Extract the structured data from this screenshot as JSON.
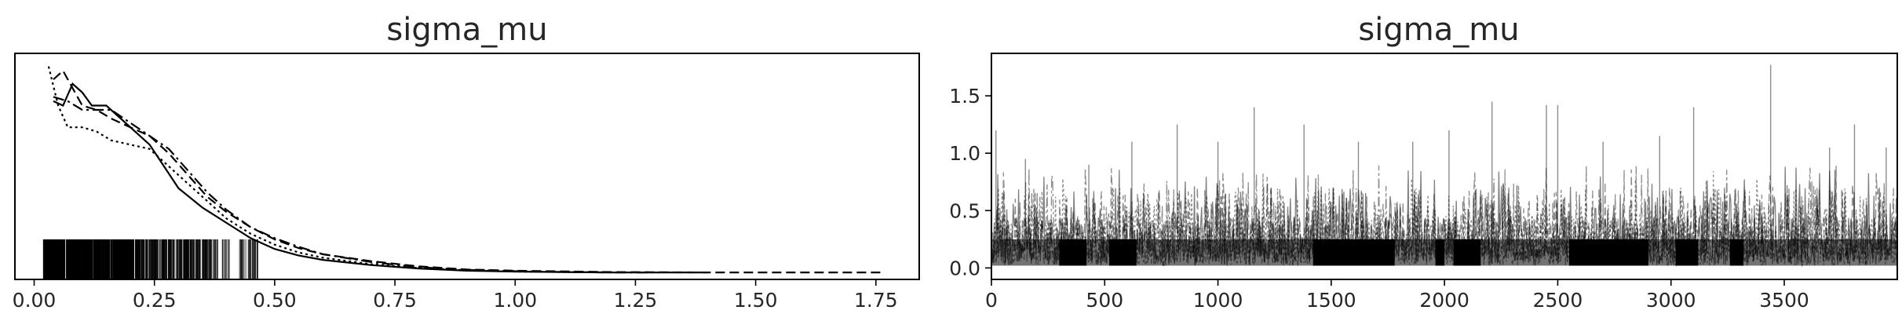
{
  "chart_data": [
    {
      "type": "line",
      "subtype": "density",
      "title": "sigma_mu",
      "xlabel": "",
      "ylabel": "",
      "xlim": [
        -0.04,
        1.84
      ],
      "ylim": [
        0,
        5.2
      ],
      "xticks": [
        "0.00",
        "0.25",
        "0.50",
        "0.75",
        "1.00",
        "1.25",
        "1.50",
        "1.75"
      ],
      "yticks": [],
      "grid": false,
      "legend": "none",
      "rug": true,
      "series": [
        {
          "linestyle": "solid",
          "color": "#000000",
          "x": [
            0.04,
            0.06,
            0.08,
            0.1,
            0.12,
            0.15,
            0.18,
            0.21,
            0.24,
            0.27,
            0.3,
            0.35,
            0.4,
            0.45,
            0.5,
            0.55,
            0.6,
            0.7,
            0.8,
            0.9,
            1.0,
            1.1,
            1.2,
            1.3,
            1.4
          ],
          "y": [
            4.1,
            4.0,
            4.5,
            4.3,
            4.0,
            4.0,
            3.7,
            3.4,
            3.1,
            2.6,
            2.1,
            1.65,
            1.3,
            0.95,
            0.7,
            0.55,
            0.45,
            0.33,
            0.25,
            0.2,
            0.18,
            0.17,
            0.16,
            0.16,
            0.16
          ]
        },
        {
          "linestyle": "dashed",
          "color": "#000000",
          "x": [
            0.04,
            0.06,
            0.08,
            0.1,
            0.13,
            0.16,
            0.2,
            0.24,
            0.28,
            0.32,
            0.36,
            0.4,
            0.45,
            0.5,
            0.55,
            0.6,
            0.7,
            0.8,
            0.9,
            1.0,
            1.2,
            1.4,
            1.6,
            1.76
          ],
          "y": [
            4.6,
            4.8,
            4.4,
            4.0,
            3.9,
            3.7,
            3.5,
            3.3,
            2.9,
            2.4,
            1.9,
            1.55,
            1.2,
            0.92,
            0.72,
            0.58,
            0.42,
            0.3,
            0.23,
            0.2,
            0.17,
            0.16,
            0.16,
            0.16
          ]
        },
        {
          "linestyle": "dashdot",
          "color": "#000000",
          "x": [
            0.04,
            0.07,
            0.1,
            0.13,
            0.16,
            0.2,
            0.24,
            0.28,
            0.32,
            0.36,
            0.4,
            0.45,
            0.5,
            0.55,
            0.6,
            0.7,
            0.8,
            0.9,
            1.0,
            1.1,
            1.2,
            1.3
          ],
          "y": [
            4.2,
            4.1,
            3.9,
            3.9,
            3.9,
            3.6,
            3.3,
            3.0,
            2.5,
            2.0,
            1.6,
            1.2,
            0.95,
            0.75,
            0.58,
            0.4,
            0.28,
            0.22,
            0.19,
            0.17,
            0.16,
            0.16
          ]
        },
        {
          "linestyle": "dotted",
          "color": "#000000",
          "x": [
            0.03,
            0.05,
            0.07,
            0.1,
            0.13,
            0.16,
            0.2,
            0.24,
            0.28,
            0.32,
            0.36,
            0.4,
            0.45,
            0.5,
            0.55,
            0.6,
            0.7,
            0.8,
            0.9,
            1.0,
            1.1,
            1.2
          ],
          "y": [
            4.9,
            4.0,
            3.5,
            3.5,
            3.4,
            3.2,
            3.1,
            3.0,
            2.6,
            2.2,
            1.8,
            1.4,
            1.05,
            0.8,
            0.62,
            0.5,
            0.35,
            0.26,
            0.21,
            0.18,
            0.17,
            0.16
          ]
        }
      ]
    },
    {
      "type": "line",
      "subtype": "trace",
      "title": "sigma_mu",
      "xlabel": "",
      "ylabel": "",
      "xlim": [
        0,
        3999
      ],
      "ylim": [
        -0.1,
        1.87
      ],
      "xticks": [
        "0",
        "500",
        "1000",
        "1500",
        "2000",
        "2500",
        "3000",
        "3500"
      ],
      "yticks": [
        "0.0",
        "0.5",
        "1.0",
        "1.5"
      ],
      "grid": false,
      "legend": "none",
      "n_chains": 4,
      "n_draws": 4000,
      "value_range": [
        0.02,
        1.77
      ],
      "peaks": [
        {
          "x": 20,
          "y": 1.2
        },
        {
          "x": 150,
          "y": 0.95
        },
        {
          "x": 430,
          "y": 0.9
        },
        {
          "x": 620,
          "y": 1.1
        },
        {
          "x": 820,
          "y": 1.25
        },
        {
          "x": 1000,
          "y": 1.1
        },
        {
          "x": 1160,
          "y": 1.4
        },
        {
          "x": 1380,
          "y": 1.25
        },
        {
          "x": 1620,
          "y": 1.1
        },
        {
          "x": 1860,
          "y": 1.1
        },
        {
          "x": 2020,
          "y": 1.2
        },
        {
          "x": 2210,
          "y": 1.45
        },
        {
          "x": 2450,
          "y": 1.42
        },
        {
          "x": 2500,
          "y": 1.42
        },
        {
          "x": 2700,
          "y": 1.1
        },
        {
          "x": 2950,
          "y": 1.15
        },
        {
          "x": 3100,
          "y": 1.4
        },
        {
          "x": 3440,
          "y": 1.77
        },
        {
          "x": 3700,
          "y": 1.05
        },
        {
          "x": 3810,
          "y": 1.25
        },
        {
          "x": 3950,
          "y": 1.05
        }
      ]
    }
  ]
}
